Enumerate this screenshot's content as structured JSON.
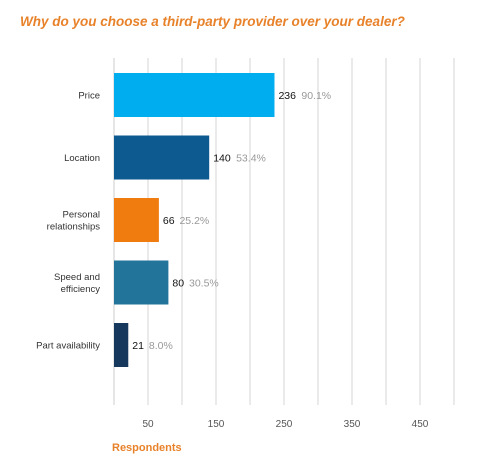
{
  "title": "Why do you choose a third-party provider over your dealer?",
  "footer_label": "Respondents",
  "chart_data": {
    "type": "bar",
    "orientation": "horizontal",
    "title": "Why do you choose a third-party provider over your dealer?",
    "xlabel": "Respondents",
    "ylabel": "",
    "categories": [
      [
        "Price"
      ],
      [
        "Location"
      ],
      [
        "Personal",
        "relationships"
      ],
      [
        "Speed and",
        "efficiency"
      ],
      [
        "Part availability"
      ]
    ],
    "values": [
      236,
      140,
      66,
      80,
      21
    ],
    "percent_labels": [
      "90.1%",
      "53.4%",
      "25.2%",
      "30.5%",
      "8.0%"
    ],
    "colors": [
      "#00adef",
      "#0c5a8f",
      "#f07b0e",
      "#22749a",
      "#16385d"
    ],
    "xlim": [
      0,
      500
    ],
    "xticks": [
      50,
      150,
      250,
      350,
      450
    ],
    "grid": true,
    "legend": "none"
  }
}
